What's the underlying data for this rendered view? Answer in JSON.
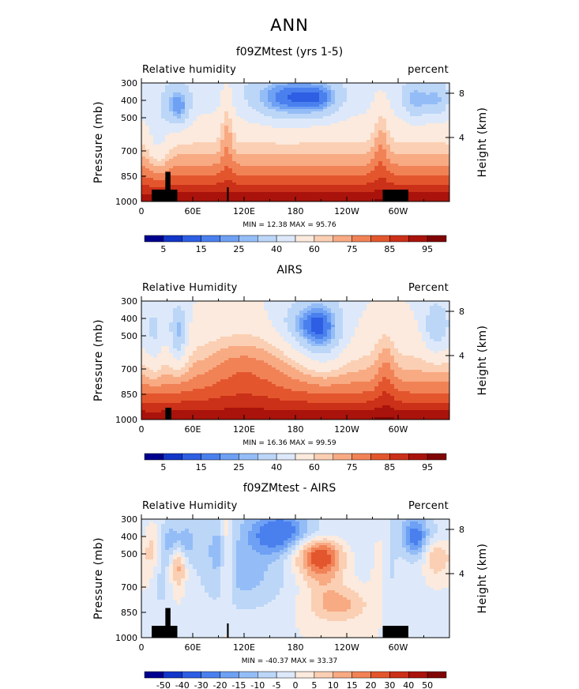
{
  "page": {
    "title": "ANN"
  },
  "chart_data": [
    {
      "type": "heatmap",
      "title": "f09ZMtest (yrs 1-5)",
      "variable_label": "Relative humidity",
      "units_label": "percent",
      "ylabel": "Pressure (mb)",
      "y2label": "Height (km)",
      "x_ticks": [
        "0",
        "60E",
        "120E",
        "180",
        "120W",
        "60W"
      ],
      "y_ticks": [
        "300",
        "400",
        "500",
        "700",
        "850",
        "1000"
      ],
      "y2_ticks": [
        "8",
        "4"
      ],
      "stats": "MIN =  12.38  MAX =  95.76",
      "colorbar": {
        "ticks": [
          "5",
          "15",
          "25",
          "40",
          "60",
          "75",
          "85",
          "95"
        ],
        "colors": [
          "#00008e",
          "#1236c8",
          "#2d5ee3",
          "#4a80ee",
          "#6ea0f4",
          "#94bdf7",
          "#bcd6f8",
          "#dde9fa",
          "#fbeadd",
          "#fbcfb3",
          "#f8aa83",
          "#f18256",
          "#e3562d",
          "#cb3018",
          "#a9130b",
          "#800505"
        ]
      },
      "fields": {
        "upper_dry_mid_pacific": 15,
        "surface_moist_max": 90
      }
    },
    {
      "type": "heatmap",
      "title": "AIRS",
      "variable_label": "Relative Humidity",
      "units_label": "Percent",
      "ylabel": "Pressure (mb)",
      "y2label": "Height (km)",
      "x_ticks": [
        "0",
        "60E",
        "120E",
        "180",
        "120W",
        "60W"
      ],
      "y_ticks": [
        "300",
        "400",
        "500",
        "700",
        "850",
        "1000"
      ],
      "y2_ticks": [
        "8",
        "4"
      ],
      "stats": "MIN =  16.36  MAX =  99.59",
      "colorbar": {
        "ticks": [
          "5",
          "15",
          "25",
          "40",
          "60",
          "75",
          "85",
          "95"
        ],
        "colors": [
          "#00008e",
          "#1236c8",
          "#2d5ee3",
          "#4a80ee",
          "#6ea0f4",
          "#94bdf7",
          "#bcd6f8",
          "#dde9fa",
          "#fbeadd",
          "#fbcfb3",
          "#f8aa83",
          "#f18256",
          "#e3562d",
          "#cb3018",
          "#a9130b",
          "#800505"
        ]
      }
    },
    {
      "type": "heatmap",
      "title": "f09ZMtest - AIRS",
      "variable_label": "Relative Humidity",
      "units_label": "Percent",
      "ylabel": "Pressure (mb)",
      "y2label": "Height (km)",
      "x_ticks": [
        "0",
        "60E",
        "120E",
        "180",
        "120W",
        "60W"
      ],
      "y_ticks": [
        "300",
        "400",
        "500",
        "700",
        "850",
        "1000"
      ],
      "y2_ticks": [
        "8",
        "4"
      ],
      "stats": "MIN = -40.37  MAX =  33.37",
      "colorbar": {
        "ticks": [
          "-50",
          "-40",
          "-30",
          "-20",
          "-15",
          "-10",
          "-5",
          "0",
          "5",
          "10",
          "15",
          "20",
          "30",
          "40",
          "50"
        ],
        "colors": [
          "#00008e",
          "#1236c8",
          "#2d5ee3",
          "#4a80ee",
          "#6ea0f4",
          "#94bdf7",
          "#bcd6f8",
          "#dde9fa",
          "#fbeadd",
          "#fbcfb3",
          "#f8aa83",
          "#f18256",
          "#e3562d",
          "#cb3018",
          "#a9130b",
          "#800505"
        ]
      }
    }
  ]
}
